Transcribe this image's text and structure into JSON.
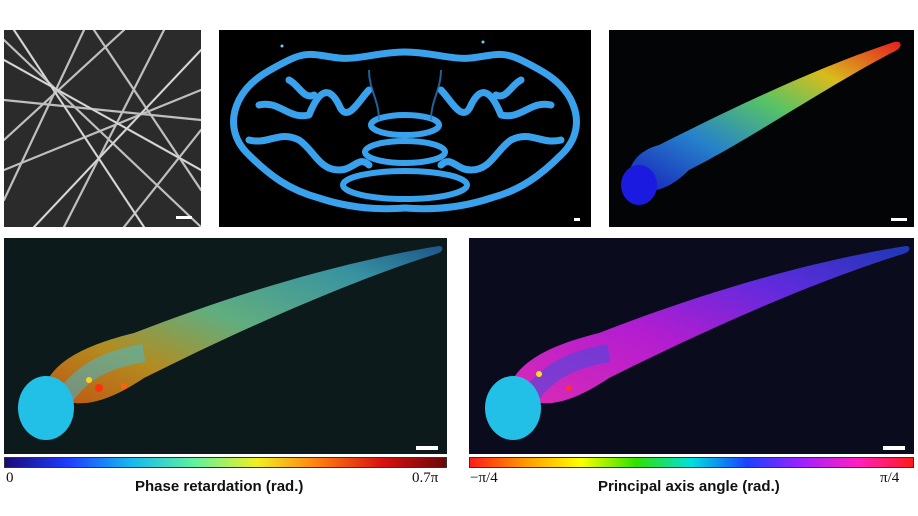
{
  "colorbars": {
    "retardation": {
      "label": "Phase retardation (rad.)",
      "min_label": "0",
      "max_label": "0.7π",
      "colors": [
        "#1a0a78",
        "#1f3cff",
        "#16b8f0",
        "#5ff0a0",
        "#f0f020",
        "#ff7a10",
        "#d81010",
        "#6a0808"
      ]
    },
    "axis_angle": {
      "label": "Principal axis angle (rad.)",
      "min_label": "−π/4",
      "max_label": "π/4",
      "colors": [
        "#ff1a1a",
        "#ff9a00",
        "#ffff00",
        "#30e000",
        "#00e0e0",
        "#1a40ff",
        "#a020ff",
        "#ff20c0",
        "#ff1a1a"
      ]
    }
  },
  "palette": {
    "fiber_panel_bg": "#2a2a2a",
    "fiber_line": "#d8d8d8",
    "brain_tissue": "#3aa2ec",
    "dark_panel_bg": "#0c1a1c",
    "head_blob": "#22c0e6"
  }
}
